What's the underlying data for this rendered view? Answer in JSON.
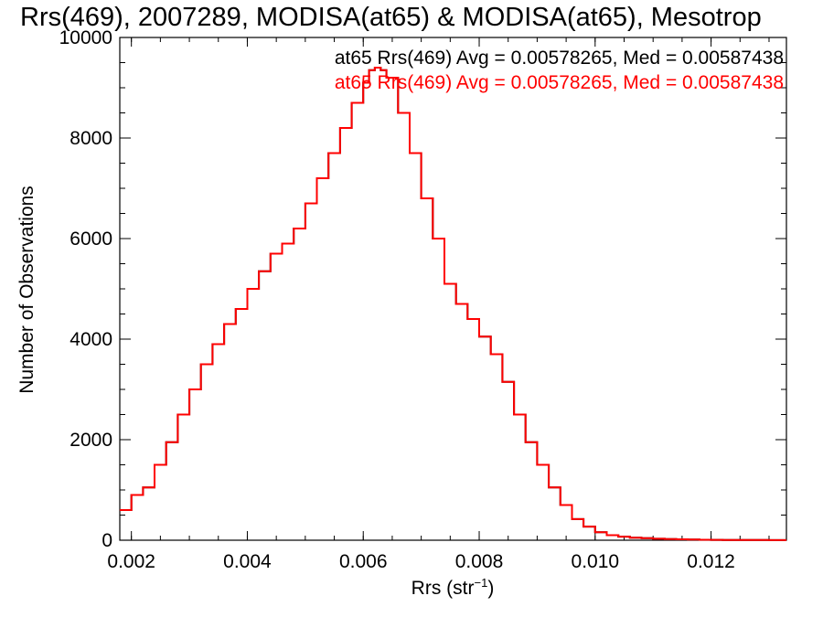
{
  "chart_data": {
    "type": "line",
    "title": "Rrs(469), 2007289, MODISA(at65) & MODISA(at65), Mesotrop",
    "xlabel": "Rrs (str",
    "xlabel_sup": "−1",
    "xlabel_close": ")",
    "ylabel": "Number of Observations",
    "xlim": [
      0.0018,
      0.0133
    ],
    "ylim": [
      0,
      10000
    ],
    "xticks": [
      0.002,
      0.004,
      0.006,
      0.008,
      0.01,
      0.012
    ],
    "xtick_labels": [
      "0.002",
      "0.004",
      "0.006",
      "0.008",
      "0.010",
      "0.012"
    ],
    "yticks": [
      0,
      2000,
      4000,
      6000,
      8000,
      10000
    ],
    "ytick_labels": [
      "0",
      "2000",
      "4000",
      "6000",
      "8000",
      "10000"
    ],
    "grid": false,
    "legend_placement": "top-right",
    "series": [
      {
        "name": "at65 Rrs(469) Avg = 0.00578265, Med = 0.00587438",
        "color": "#000000",
        "x": [
          0.0018,
          0.002,
          0.0022,
          0.0024,
          0.0026,
          0.0028,
          0.003,
          0.0032,
          0.0034,
          0.0036,
          0.0038,
          0.004,
          0.0042,
          0.0044,
          0.0046,
          0.0048,
          0.005,
          0.0052,
          0.0054,
          0.0056,
          0.0058,
          0.006,
          0.0061,
          0.0062,
          0.0063,
          0.0064,
          0.0066,
          0.0068,
          0.007,
          0.0072,
          0.0074,
          0.0076,
          0.0078,
          0.008,
          0.0082,
          0.0084,
          0.0086,
          0.0088,
          0.009,
          0.0092,
          0.0094,
          0.0096,
          0.0098,
          0.01,
          0.0102,
          0.0104,
          0.0106,
          0.0108,
          0.011,
          0.0112,
          0.0114,
          0.0116,
          0.0118,
          0.012,
          0.0122,
          0.0124,
          0.0126,
          0.0128,
          0.013,
          0.0133
        ],
        "values": [
          600,
          900,
          1050,
          1500,
          1950,
          2500,
          3000,
          3500,
          3900,
          4300,
          4600,
          5000,
          5350,
          5700,
          5900,
          6200,
          6700,
          7200,
          7700,
          8200,
          8700,
          9100,
          9350,
          9400,
          9350,
          9200,
          8500,
          7700,
          6800,
          6000,
          5100,
          4700,
          4400,
          4050,
          3700,
          3150,
          2500,
          1950,
          1500,
          1050,
          700,
          420,
          270,
          160,
          100,
          70,
          50,
          40,
          30,
          22,
          18,
          14,
          10,
          8,
          6,
          5,
          4,
          3,
          2,
          2
        ]
      },
      {
        "name": "at65 Rrs(469) Avg = 0.00578265, Med = 0.00587438",
        "color": "#ff0000",
        "x": [
          0.0018,
          0.002,
          0.0022,
          0.0024,
          0.0026,
          0.0028,
          0.003,
          0.0032,
          0.0034,
          0.0036,
          0.0038,
          0.004,
          0.0042,
          0.0044,
          0.0046,
          0.0048,
          0.005,
          0.0052,
          0.0054,
          0.0056,
          0.0058,
          0.006,
          0.0061,
          0.0062,
          0.0063,
          0.0064,
          0.0066,
          0.0068,
          0.007,
          0.0072,
          0.0074,
          0.0076,
          0.0078,
          0.008,
          0.0082,
          0.0084,
          0.0086,
          0.0088,
          0.009,
          0.0092,
          0.0094,
          0.0096,
          0.0098,
          0.01,
          0.0102,
          0.0104,
          0.0106,
          0.0108,
          0.011,
          0.0112,
          0.0114,
          0.0116,
          0.0118,
          0.012,
          0.0122,
          0.0124,
          0.0126,
          0.0128,
          0.013,
          0.0133
        ],
        "values": [
          600,
          900,
          1050,
          1500,
          1950,
          2500,
          3000,
          3500,
          3900,
          4300,
          4600,
          5000,
          5350,
          5700,
          5900,
          6200,
          6700,
          7200,
          7700,
          8200,
          8700,
          9100,
          9350,
          9400,
          9350,
          9200,
          8500,
          7700,
          6800,
          6000,
          5100,
          4700,
          4400,
          4050,
          3700,
          3150,
          2500,
          1950,
          1500,
          1050,
          700,
          420,
          270,
          160,
          100,
          70,
          50,
          40,
          30,
          22,
          18,
          14,
          10,
          8,
          6,
          5,
          4,
          3,
          2,
          2
        ]
      }
    ]
  }
}
